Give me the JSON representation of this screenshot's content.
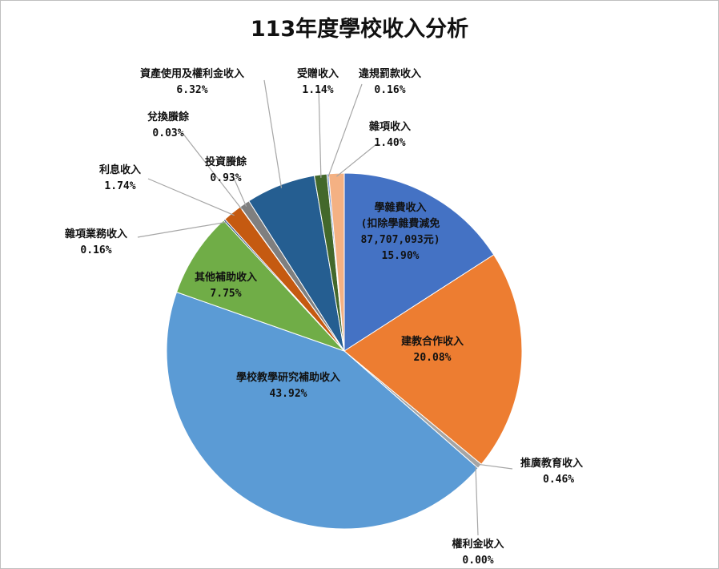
{
  "chart_data": {
    "type": "pie",
    "title": "113年度學校收入分析",
    "slices": [
      {
        "label": "學雜費收入\n(扣除學雜費減免\n87,707,093元)",
        "value": 15.9,
        "value_label": "15.90%",
        "color": "#4472C4"
      },
      {
        "label": "建教合作收入",
        "value": 20.08,
        "value_label": "20.08%",
        "color": "#ED7D31"
      },
      {
        "label": "推廣教育收入",
        "value": 0.46,
        "value_label": "0.46%",
        "color": "#A5A5A5"
      },
      {
        "label": "權利金收入",
        "value": 0.0,
        "value_label": "0.00%",
        "color": "#FFC000"
      },
      {
        "label": "學校教學研究補助收入",
        "value": 43.92,
        "value_label": "43.92%",
        "color": "#5B9BD5"
      },
      {
        "label": "其他補助收入",
        "value": 7.75,
        "value_label": "7.75%",
        "color": "#70AD47"
      },
      {
        "label": "雜項業務收入",
        "value": 0.16,
        "value_label": "0.16%",
        "color": "#264478"
      },
      {
        "label": "利息收入",
        "value": 1.74,
        "value_label": "1.74%",
        "color": "#C55A11"
      },
      {
        "label": "兌換賸餘",
        "value": 0.03,
        "value_label": "0.03%",
        "color": "#636363"
      },
      {
        "label": "投資賸餘",
        "value": 0.93,
        "value_label": "0.93%",
        "color": "#7F7F7F"
      },
      {
        "label": "資產使用及權利金收入",
        "value": 6.32,
        "value_label": "6.32%",
        "color": "#255E91"
      },
      {
        "label": "受贈收入",
        "value": 1.14,
        "value_label": "1.14%",
        "color": "#43682B"
      },
      {
        "label": "違規罰款收入",
        "value": 0.16,
        "value_label": "0.16%",
        "color": "#698ED0"
      },
      {
        "label": "雜項收入",
        "value": 1.4,
        "value_label": "1.40%",
        "color": "#F4B183"
      }
    ]
  }
}
